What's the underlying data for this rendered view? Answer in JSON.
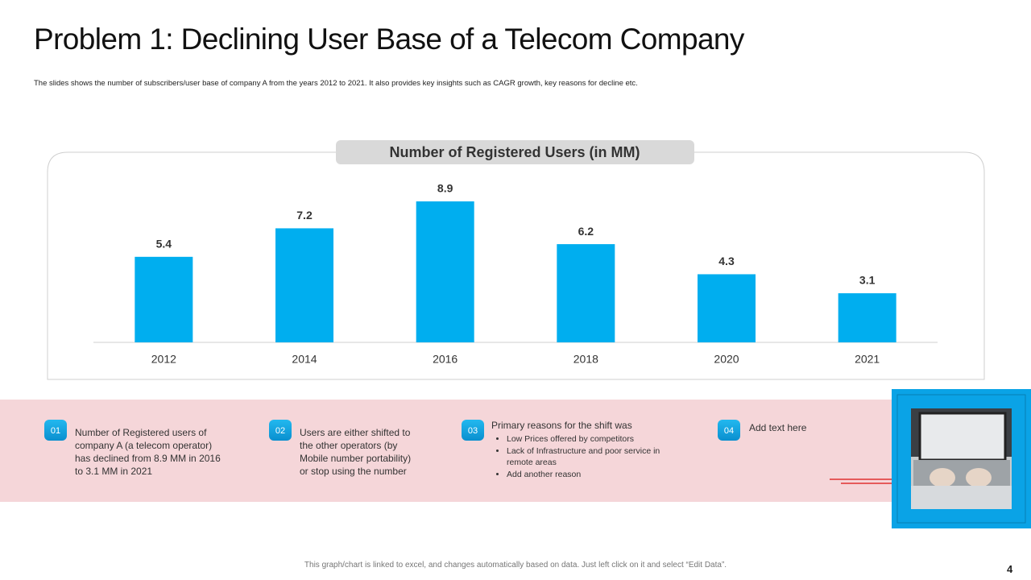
{
  "title": "Problem 1: Declining User Base of a Telecom Company",
  "subtitle": "The slides shows the number of subscribers/user base of company A from the years 2012 to 2021. It also provides key insights  such as CAGR growth, key reasons for decline etc.",
  "chart_data": {
    "type": "bar",
    "title": "Number of Registered Users (in MM)",
    "categories": [
      "2012",
      "2014",
      "2016",
      "2018",
      "2020",
      "2021"
    ],
    "values": [
      5.4,
      7.2,
      8.9,
      6.2,
      4.3,
      3.1
    ],
    "color": "#00aeef"
  },
  "insights": [
    {
      "number": "01",
      "text": "Number of Registered  users of company A (a telecom operator) has declined from 8.9 MM in 2016 to 3.1 MM in 2021"
    },
    {
      "number": "02",
      "text": "Users are either shifted to the other operators (by Mobile number portability) or stop using the number"
    },
    {
      "number": "03",
      "text": "Primary reasons for the shift was",
      "bullets": [
        "Low Prices offered by competitors",
        "Lack of Infrastructure and poor service in remote areas",
        "Add another reason"
      ]
    },
    {
      "number": "04",
      "text": "Add text here"
    }
  ],
  "footer": "This graph/chart is linked to excel, and changes automatically  based on data. Just left click on it and select “Edit Data”.",
  "page_number": 4
}
